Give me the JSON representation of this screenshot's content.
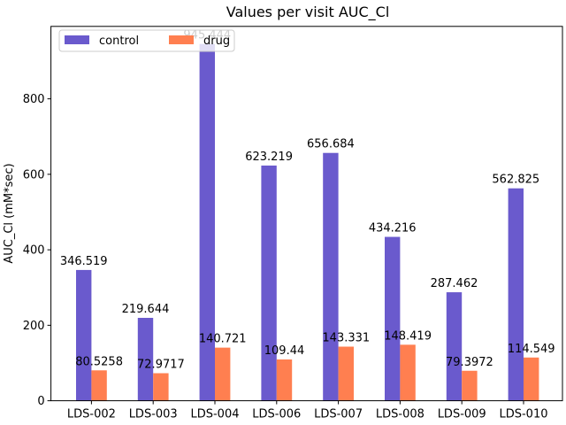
{
  "chart_data": {
    "type": "bar",
    "title": "Values per visit AUC_Cl",
    "xlabel": "",
    "ylabel": "AUC_Cl (mM*sec)",
    "categories": [
      "LDS-002",
      "LDS-003",
      "LDS-004",
      "LDS-006",
      "LDS-007",
      "LDS-008",
      "LDS-009",
      "LDS-010"
    ],
    "series": [
      {
        "name": "control",
        "color": "#6a5acd",
        "values": [
          346.519,
          219.644,
          945.444,
          623.219,
          656.684,
          434.216,
          287.462,
          562.825
        ],
        "labels": [
          "346.519",
          "219.644",
          "945.444",
          "623.219",
          "656.684",
          "434.216",
          "287.462",
          "562.825"
        ]
      },
      {
        "name": "drug",
        "color": "#ff7f50",
        "values": [
          80.5258,
          72.9717,
          140.721,
          109.44,
          143.331,
          148.419,
          79.3972,
          114.549
        ],
        "labels": [
          "80.5258",
          "72.9717",
          "140.721",
          "109.44",
          "143.331",
          "148.419",
          "79.3972",
          "114.549"
        ]
      }
    ],
    "ylim": [
      0,
      992
    ],
    "yticks": [
      0,
      200,
      400,
      600,
      800
    ],
    "ytick_labels": [
      "0",
      "200",
      "400",
      "600",
      "800"
    ],
    "grid": false,
    "legend": "top-left, two columns"
  }
}
